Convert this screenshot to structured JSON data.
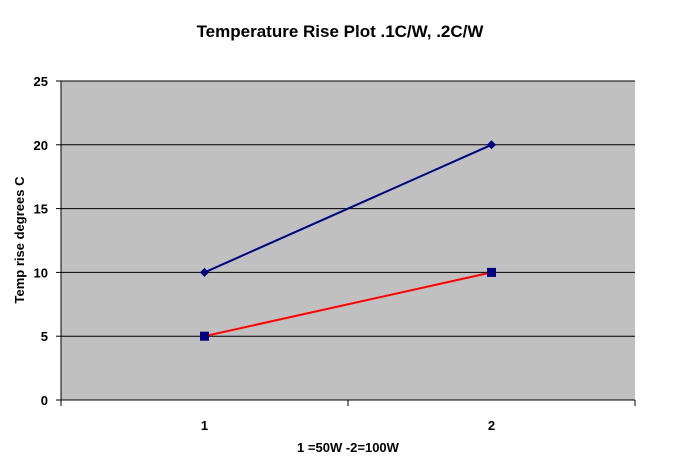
{
  "chart_data": {
    "type": "line",
    "title": "Temperature Rise Plot .1C/W, .2C/W",
    "xlabel": "1 =50W -2=100W",
    "ylabel": "Temp rise degrees C",
    "categories": [
      "1",
      "2"
    ],
    "ylim": [
      0,
      25
    ],
    "yticks": [
      0,
      5,
      10,
      15,
      20,
      25
    ],
    "grid": true,
    "legend": "none",
    "series": [
      {
        "values": [
          10,
          20
        ],
        "color": "#000080",
        "line_color": "#000080",
        "marker": "diamond"
      },
      {
        "values": [
          5,
          10
        ],
        "color": "#ff0000",
        "line_color": "#ff0000",
        "marker": "square"
      }
    ],
    "colors": {
      "plot_background": "#c0c0c0",
      "gridline": "#000000",
      "marker_fill": "#000080"
    }
  }
}
